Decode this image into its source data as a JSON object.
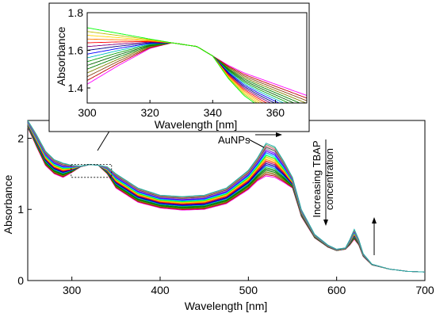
{
  "chart_data": [
    {
      "type": "line",
      "panel": "main",
      "xlabel": "Wavelength [nm]",
      "ylabel": "Absorbance",
      "xlim": [
        250,
        700
      ],
      "ylim": [
        0,
        2.25
      ],
      "xticks": [
        300,
        400,
        500,
        600,
        700
      ],
      "yticks": [
        0,
        1,
        2
      ],
      "grid": false,
      "legend": "none",
      "series_count": 25,
      "curves": {
        "first": {
          "x": [
            250,
            260,
            270,
            280,
            290,
            300,
            310,
            320,
            330,
            340,
            350,
            375,
            400,
            425,
            450,
            475,
            500,
            510,
            520,
            530,
            540,
            550,
            560,
            575,
            590,
            600,
            610,
            615,
            620,
            625,
            630,
            640,
            660,
            680,
            700
          ],
          "y": [
            2.15,
            1.88,
            1.62,
            1.5,
            1.45,
            1.52,
            1.6,
            1.63,
            1.62,
            1.5,
            1.3,
            1.1,
            1.02,
            0.99,
            1.0,
            1.08,
            1.28,
            1.4,
            1.47,
            1.45,
            1.38,
            1.3,
            0.9,
            0.6,
            0.47,
            0.42,
            0.44,
            0.5,
            0.58,
            0.5,
            0.34,
            0.22,
            0.16,
            0.13,
            0.12
          ]
        },
        "last": {
          "x": [
            250,
            260,
            270,
            280,
            290,
            300,
            310,
            320,
            330,
            340,
            350,
            375,
            400,
            425,
            450,
            475,
            500,
            510,
            520,
            530,
            540,
            550,
            560,
            575,
            590,
            600,
            610,
            615,
            620,
            625,
            630,
            640,
            660,
            680,
            700
          ],
          "y": [
            2.25,
            2.05,
            1.82,
            1.7,
            1.65,
            1.62,
            1.61,
            1.63,
            1.62,
            1.6,
            1.5,
            1.3,
            1.2,
            1.18,
            1.2,
            1.3,
            1.55,
            1.72,
            1.93,
            1.88,
            1.68,
            1.45,
            1.0,
            0.65,
            0.5,
            0.44,
            0.46,
            0.58,
            0.72,
            0.58,
            0.38,
            0.23,
            0.16,
            0.13,
            0.12
          ]
        }
      },
      "annotations": {
        "peak_label": "AuNPs",
        "trend_label_line1": "Increasing TBAP",
        "trend_label_line2": "concentration"
      },
      "zoom_box_x": [
        310,
        345
      ],
      "zoom_box_y": [
        1.45,
        1.7
      ]
    },
    {
      "type": "line",
      "panel": "inset",
      "xlabel": "Wavelength [nm]",
      "ylabel": "Absorbance",
      "xlim": [
        300,
        370
      ],
      "ylim": [
        1.32,
        1.8
      ],
      "xticks": [
        300,
        320,
        340,
        360
      ],
      "yticks": [
        1.4,
        1.6,
        1.8
      ],
      "grid": false,
      "legend": "none",
      "series_count": 16,
      "curves": {
        "first": {
          "x": [
            300,
            310,
            320,
            327,
            335,
            340,
            345,
            350,
            355,
            360,
            365,
            370
          ],
          "y": [
            1.42,
            1.52,
            1.61,
            1.64,
            1.62,
            1.57,
            1.52,
            1.48,
            1.45,
            1.42,
            1.39,
            1.36
          ]
        },
        "last": {
          "x": [
            300,
            310,
            320,
            327,
            335,
            340,
            345,
            350,
            355,
            360,
            365,
            370
          ],
          "y": [
            1.72,
            1.69,
            1.66,
            1.64,
            1.62,
            1.57,
            1.45,
            1.36,
            1.3,
            1.25,
            1.2,
            1.15
          ]
        }
      }
    }
  ],
  "colors": {
    "series_palette": [
      "#ff00ff",
      "#c00000",
      "#8b4513",
      "#808000",
      "#008000",
      "#006400",
      "#00a000",
      "#00c0c0",
      "#0000ff",
      "#000080",
      "#800080",
      "#ff0000",
      "#ff8000",
      "#ffd700",
      "#c0c000",
      "#00ff00",
      "#00ffff",
      "#0080ff",
      "#4000ff",
      "#8000ff",
      "#a0a0a0",
      "#404040",
      "#ff6080",
      "#60a060",
      "#20b0b0"
    ],
    "axis": "#000000"
  }
}
